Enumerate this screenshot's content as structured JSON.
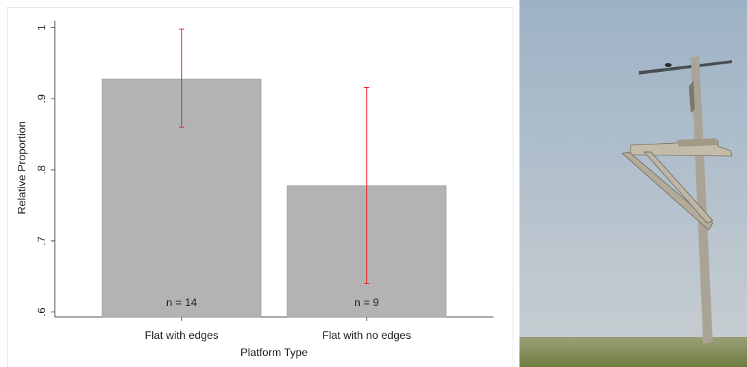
{
  "chart_data": {
    "type": "bar",
    "categories": [
      "Flat with edges",
      "Flat with no edges"
    ],
    "values": [
      0.928,
      0.778
    ],
    "error_low": [
      0.86,
      0.64
    ],
    "error_high": [
      0.998,
      0.916
    ],
    "annotations": [
      "n = 14",
      "n = 9"
    ],
    "color": "#b3b3b3",
    "error_color": "#e8141a",
    "xlabel": "Platform Type",
    "ylabel": "Relative Proportion",
    "ylim": [
      0.593,
      1.01
    ],
    "yticks": [
      {
        "value": 0.6,
        "label": ".6"
      },
      {
        "value": 0.7,
        "label": ".7"
      },
      {
        "value": 0.8,
        "label": ".8"
      },
      {
        "value": 0.9,
        "label": ".9"
      },
      1
    ],
    "grid": false
  }
}
